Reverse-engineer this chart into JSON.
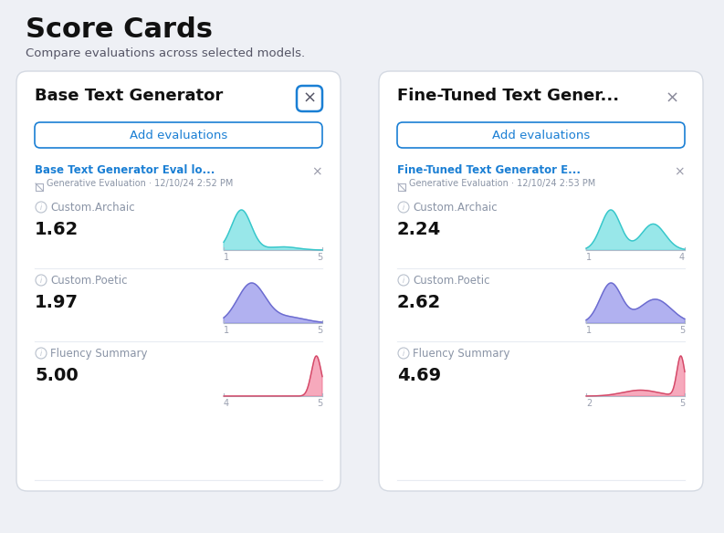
{
  "title": "Score Cards",
  "subtitle": "Compare evaluations across selected models.",
  "bg_color": "#eef0f5",
  "card_bg": "#ffffff",
  "blue_accent": "#1a7fd4",
  "text_dark": "#111111",
  "text_gray": "#8a94a6",
  "left_card": {
    "title": "Base Text Generator",
    "x_btn_border": true,
    "eval_title": "Base Text Generator Eval lo...",
    "eval_sub": "Generative Evaluation · 12/10/24 2:52 PM",
    "metrics": [
      {
        "name": "Custom.Archaic",
        "value": "1.62",
        "x_min": "1",
        "x_max": "5",
        "type": "archaic"
      },
      {
        "name": "Custom.Poetic",
        "value": "1.97",
        "x_min": "1",
        "x_max": "5",
        "type": "poetic"
      },
      {
        "name": "Fluency Summary",
        "value": "5.00",
        "x_min": "4",
        "x_max": "5",
        "type": "fluency"
      }
    ]
  },
  "right_card": {
    "title": "Fine-Tuned Text Gener...",
    "x_btn_border": false,
    "eval_title": "Fine-Tuned Text Generator E...",
    "eval_sub": "Generative Evaluation · 12/10/24 2:53 PM",
    "metrics": [
      {
        "name": "Custom.Archaic",
        "value": "2.24",
        "x_min": "1",
        "x_max": "4",
        "type": "archaic2"
      },
      {
        "name": "Custom.Poetic",
        "value": "2.62",
        "x_min": "1",
        "x_max": "5",
        "type": "poetic2"
      },
      {
        "name": "Fluency Summary",
        "value": "4.69",
        "x_min": "2",
        "x_max": "5",
        "type": "fluency2"
      }
    ]
  }
}
